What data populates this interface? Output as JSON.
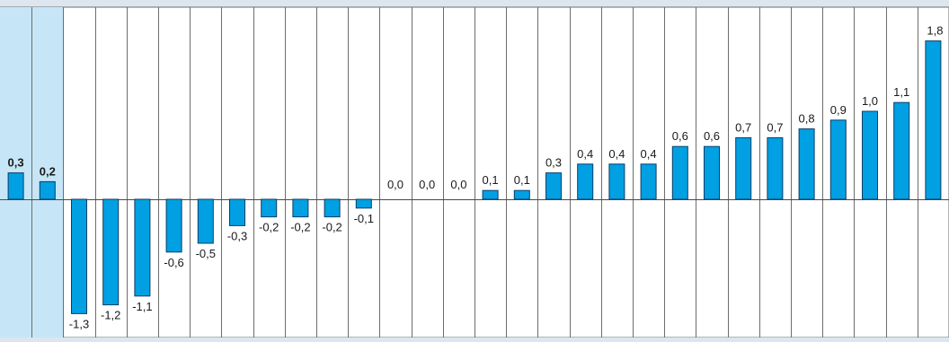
{
  "chart_data": {
    "type": "bar",
    "categories": [],
    "values": [
      0.3,
      0.2,
      -1.3,
      -1.2,
      -1.1,
      -0.6,
      -0.5,
      -0.3,
      -0.2,
      -0.2,
      -0.2,
      -0.1,
      0.0,
      0.0,
      0.0,
      0.1,
      0.1,
      0.3,
      0.4,
      0.4,
      0.4,
      0.6,
      0.6,
      0.7,
      0.7,
      0.8,
      0.9,
      1.0,
      1.1,
      1.8
    ],
    "labels": [
      "0,3",
      "0,2",
      "-1,3",
      "-1,2",
      "-1,1",
      "-0,6",
      "-0,5",
      "-0,3",
      "-0,2",
      "-0,2",
      "-0,2",
      "-0,1",
      "0,0",
      "0,0",
      "0,0",
      "0,1",
      "0,1",
      "0,3",
      "0,4",
      "0,4",
      "0,4",
      "0,6",
      "0,6",
      "0,7",
      "0,7",
      "0,8",
      "0,9",
      "1,0",
      "1,1",
      "1,8"
    ],
    "highlighted_indices": [
      0,
      1
    ],
    "title": "",
    "xlabel": "",
    "ylabel": "",
    "ylim": [
      -1.6,
      2.2
    ],
    "grid": "vertical separators",
    "colors": {
      "bar": "#00a0e3",
      "bar_stroke": "#0a3d66",
      "highlight_band": "#c6e6f8",
      "plot_background": "#ffffff",
      "outer_background": "#dde6ee",
      "separator": "#6d6d6d",
      "zero_line": "#4a4a4a"
    }
  }
}
